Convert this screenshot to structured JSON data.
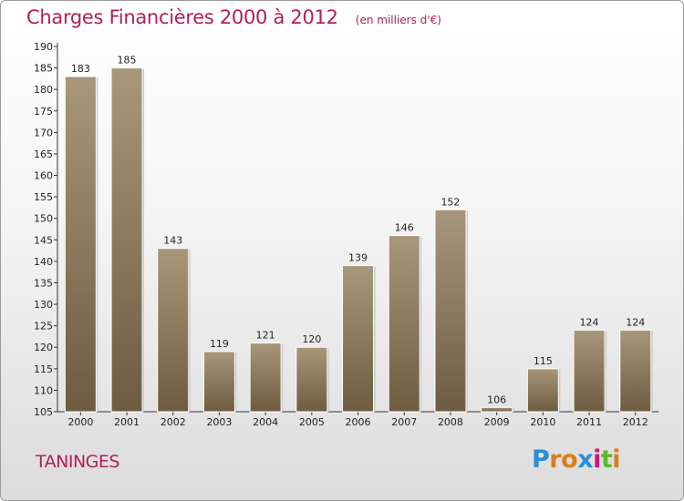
{
  "chart_data": {
    "type": "bar",
    "title": "Charges Financières 2000 à 2012",
    "subtitle": "(en milliers d'€)",
    "categories": [
      "2000",
      "2001",
      "2002",
      "2003",
      "2004",
      "2005",
      "2006",
      "2007",
      "2008",
      "2009",
      "2010",
      "2011",
      "2012"
    ],
    "values": [
      183,
      185,
      143,
      119,
      121,
      120,
      139,
      146,
      152,
      106,
      115,
      124,
      124
    ],
    "ylim": [
      105,
      190
    ],
    "yticks": [
      105,
      110,
      115,
      120,
      125,
      130,
      135,
      140,
      145,
      150,
      155,
      160,
      165,
      170,
      175,
      180,
      185,
      190
    ],
    "grid": false,
    "bar_color_top": "#a8977a",
    "bar_color_bottom": "#6e5c42"
  },
  "location": "TANINGES",
  "brand": {
    "letters": [
      "P",
      "r",
      "o",
      "x",
      "i",
      "t",
      "i"
    ],
    "colors": [
      "#2a8fd6",
      "#e07b1a",
      "#e07b1a",
      "#2a8fd6",
      "#d4147a",
      "#5cb82e",
      "#e07b1a"
    ]
  }
}
